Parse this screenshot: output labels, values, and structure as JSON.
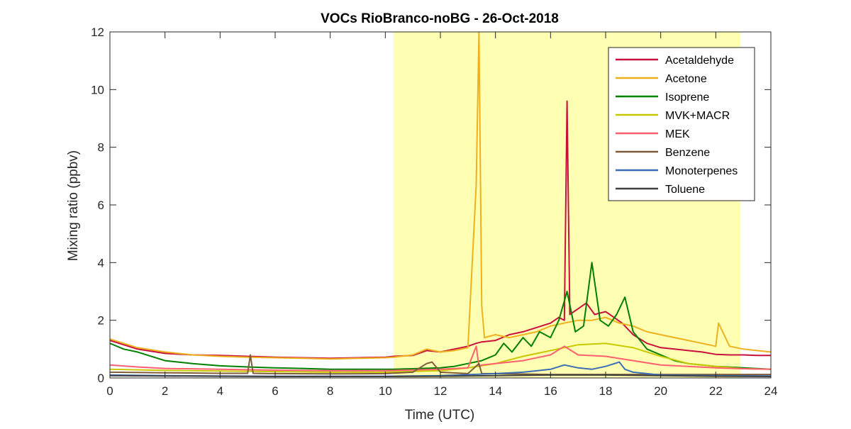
{
  "chart_data": {
    "type": "line",
    "title": "VOCs RioBranco-noBG - 26-Oct-2018",
    "xlabel": "Time (UTC)",
    "ylabel": "Mixing ratio (ppbv)",
    "xlim": [
      0,
      24
    ],
    "ylim": [
      0,
      12
    ],
    "xticks": [
      0,
      2,
      4,
      6,
      8,
      10,
      12,
      14,
      16,
      18,
      20,
      22,
      24
    ],
    "yticks": [
      0,
      2,
      4,
      6,
      8,
      10,
      12
    ],
    "grid": false,
    "legend_position": "top-right",
    "daylight_shading": {
      "x_start": 10.3,
      "x_end": 22.9,
      "color": "#ffffb3"
    },
    "series": [
      {
        "name": "Acetaldehyde",
        "color": "#c8103e",
        "x": [
          0,
          0.5,
          1,
          2,
          3,
          4,
          5,
          6,
          7,
          8,
          9,
          10,
          10.3,
          11,
          11.5,
          12,
          12.5,
          13,
          13.3,
          13.5,
          14,
          14.5,
          15,
          15.5,
          16,
          16.3,
          16.5,
          16.6,
          16.7,
          17,
          17.3,
          17.6,
          18,
          18.3,
          18.6,
          19,
          19.5,
          20,
          20.5,
          21,
          21.5,
          22,
          22.5,
          23,
          23.5,
          24
        ],
        "y": [
          1.3,
          1.15,
          1.0,
          0.85,
          0.8,
          0.78,
          0.75,
          0.72,
          0.7,
          0.68,
          0.7,
          0.72,
          0.75,
          0.78,
          0.95,
          0.9,
          1.0,
          1.1,
          1.2,
          1.25,
          1.3,
          1.5,
          1.6,
          1.75,
          1.9,
          2.1,
          2.0,
          9.6,
          2.2,
          2.4,
          2.6,
          2.2,
          2.3,
          2.1,
          1.9,
          1.5,
          1.2,
          1.05,
          1.0,
          0.95,
          0.9,
          0.82,
          0.8,
          0.8,
          0.78,
          0.78
        ]
      },
      {
        "name": "Acetone",
        "color": "#edb120",
        "x": [
          0,
          0.5,
          1,
          2,
          3,
          4,
          5,
          6,
          7,
          8,
          9,
          10,
          10.3,
          11,
          11.5,
          12,
          12.5,
          13,
          13.3,
          13.4,
          13.5,
          13.6,
          14,
          14.5,
          15,
          15.5,
          16,
          16.5,
          17,
          17.5,
          18,
          18.5,
          19,
          19.5,
          20,
          20.5,
          21,
          21.5,
          22,
          22.1,
          22.5,
          23,
          23.5,
          24
        ],
        "y": [
          1.35,
          1.2,
          1.05,
          0.9,
          0.8,
          0.75,
          0.72,
          0.7,
          0.68,
          0.66,
          0.68,
          0.7,
          0.72,
          0.8,
          1.0,
          0.9,
          0.95,
          1.05,
          6.7,
          12.0,
          2.5,
          1.4,
          1.5,
          1.4,
          1.5,
          1.6,
          1.8,
          1.9,
          2.0,
          2.0,
          2.1,
          1.9,
          1.8,
          1.6,
          1.5,
          1.4,
          1.3,
          1.2,
          1.1,
          1.9,
          1.1,
          1.0,
          0.95,
          0.9
        ]
      },
      {
        "name": "Isoprene",
        "color": "#008000",
        "x": [
          0,
          0.5,
          1,
          2,
          3,
          4,
          5,
          6,
          7,
          8,
          9,
          10,
          10.3,
          11,
          12,
          12.5,
          13,
          13.5,
          14,
          14.3,
          14.6,
          15,
          15.3,
          15.6,
          16,
          16.3,
          16.6,
          16.9,
          17.2,
          17.5,
          17.8,
          18.1,
          18.4,
          18.7,
          19,
          19.5,
          20,
          20.5,
          21,
          22,
          23,
          24
        ],
        "y": [
          1.2,
          1.0,
          0.9,
          0.6,
          0.5,
          0.42,
          0.38,
          0.35,
          0.33,
          0.3,
          0.3,
          0.3,
          0.3,
          0.32,
          0.35,
          0.4,
          0.5,
          0.6,
          0.8,
          1.2,
          0.9,
          1.4,
          1.1,
          1.6,
          1.4,
          2.0,
          3.0,
          1.6,
          1.8,
          4.0,
          2.0,
          1.8,
          2.2,
          2.8,
          1.6,
          1.0,
          0.8,
          0.6,
          0.5,
          0.4,
          0.35,
          0.3
        ]
      },
      {
        "name": "MVK+MACR",
        "color": "#c8c800",
        "x": [
          0,
          2,
          4,
          6,
          8,
          10,
          12,
          13,
          14,
          15,
          16,
          17,
          18,
          19,
          20,
          21,
          22,
          23,
          24
        ],
        "y": [
          0.3,
          0.26,
          0.24,
          0.22,
          0.2,
          0.2,
          0.25,
          0.35,
          0.5,
          0.75,
          0.95,
          1.15,
          1.2,
          1.05,
          0.75,
          0.5,
          0.4,
          0.32,
          0.3
        ]
      },
      {
        "name": "MEK",
        "color": "#ff6070",
        "x": [
          0,
          1,
          2,
          4,
          6,
          8,
          10,
          12,
          13,
          13.3,
          13.4,
          13.5,
          14,
          15,
          16,
          16.5,
          17,
          18,
          19,
          20,
          21,
          22,
          23,
          24
        ],
        "y": [
          0.45,
          0.38,
          0.33,
          0.3,
          0.27,
          0.25,
          0.25,
          0.3,
          0.35,
          1.1,
          0.4,
          0.45,
          0.5,
          0.6,
          0.8,
          1.1,
          0.8,
          0.75,
          0.6,
          0.45,
          0.4,
          0.35,
          0.32,
          0.3
        ]
      },
      {
        "name": "Benzene",
        "color": "#7e5d3a",
        "x": [
          0,
          2,
          4,
          5.0,
          5.1,
          5.2,
          6,
          8,
          10,
          11,
          11.5,
          11.7,
          12,
          13,
          13.4,
          13.5,
          14,
          16,
          18,
          20,
          22,
          24
        ],
        "y": [
          0.2,
          0.18,
          0.16,
          0.16,
          0.8,
          0.16,
          0.15,
          0.14,
          0.15,
          0.2,
          0.5,
          0.55,
          0.2,
          0.15,
          0.5,
          0.15,
          0.15,
          0.12,
          0.12,
          0.12,
          0.12,
          0.12
        ]
      },
      {
        "name": "Monoterpenes",
        "color": "#3b6db5",
        "x": [
          0,
          2,
          4,
          6,
          8,
          10,
          12,
          14,
          15,
          16,
          16.5,
          17,
          17.5,
          18,
          18.5,
          18.7,
          19,
          20,
          22,
          24
        ],
        "y": [
          0.1,
          0.08,
          0.07,
          0.06,
          0.06,
          0.06,
          0.08,
          0.15,
          0.2,
          0.3,
          0.45,
          0.35,
          0.3,
          0.4,
          0.55,
          0.3,
          0.2,
          0.1,
          0.08,
          0.07
        ]
      },
      {
        "name": "Toluene",
        "color": "#404040",
        "x": [
          0,
          2,
          4,
          6,
          8,
          10,
          12,
          14,
          16,
          18,
          20,
          22,
          24
        ],
        "y": [
          0.08,
          0.07,
          0.06,
          0.05,
          0.05,
          0.05,
          0.06,
          0.08,
          0.1,
          0.1,
          0.08,
          0.06,
          0.05
        ]
      }
    ]
  }
}
